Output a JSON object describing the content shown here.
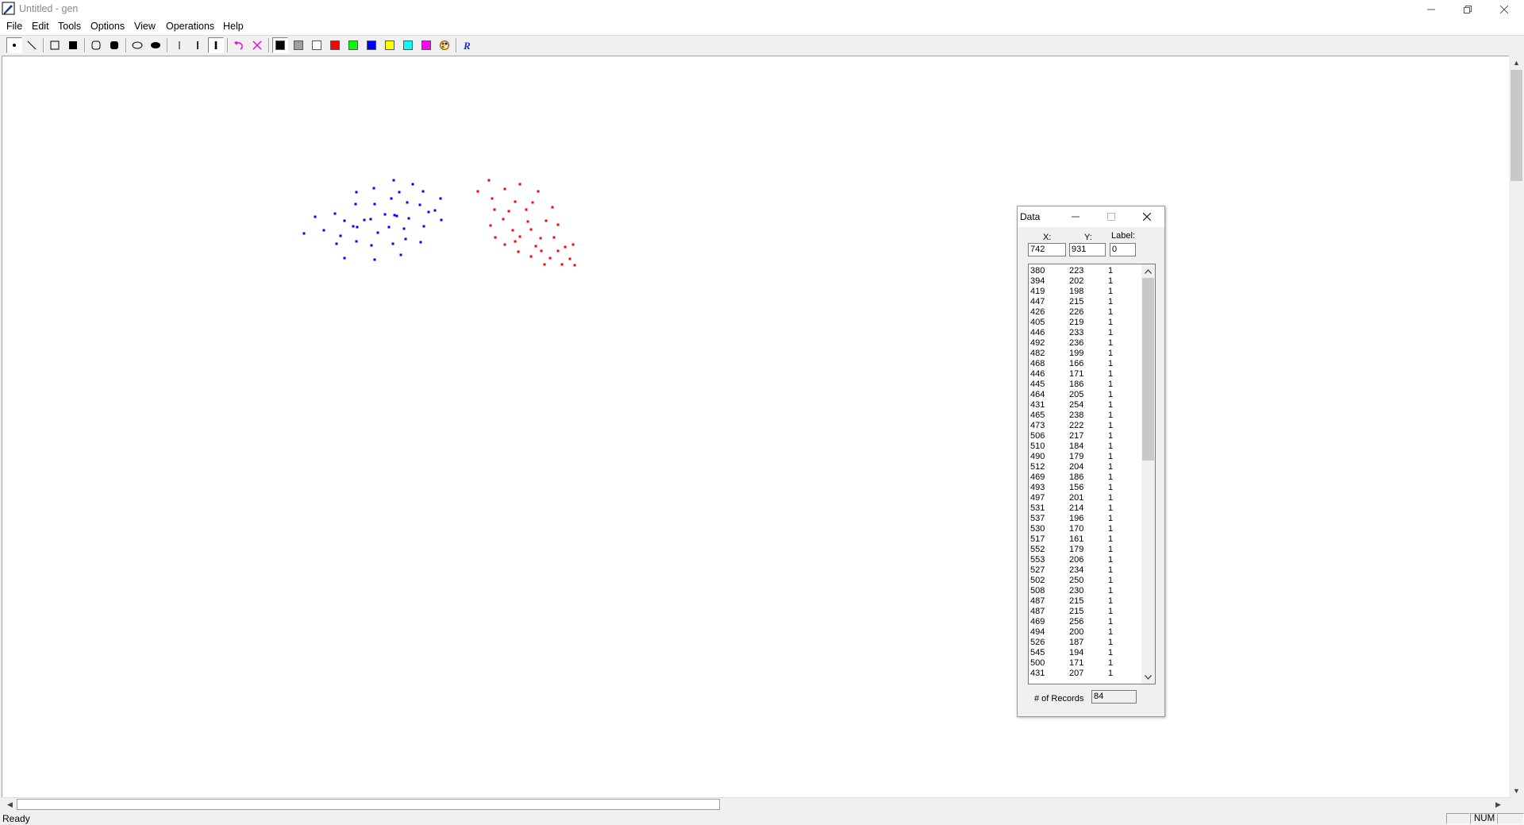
{
  "window": {
    "title": "Untitled - gen",
    "minimize_icon": "minimize-icon",
    "restore_icon": "restore-icon",
    "close_icon": "close-icon"
  },
  "menu": [
    "File",
    "Edit",
    "Tools",
    "Options",
    "View",
    "Operations",
    "Help"
  ],
  "toolbar": {
    "tools": [
      "point-tool",
      "line-tool",
      "rectangle-tool",
      "filled-rectangle-tool",
      "rounded-rectangle-tool",
      "filled-rounded-rectangle-tool",
      "ellipse-tool",
      "filled-ellipse-tool",
      "thin-line-width",
      "medium-line-width",
      "thick-line-width",
      "undo-tool",
      "clear-tool"
    ],
    "colors": [
      "#000000",
      "#a0a0a0",
      "#ffffff",
      "#ff0000",
      "#00ff00",
      "#0000ff",
      "#ffff00",
      "#00ffff",
      "#ff00ff"
    ],
    "custom_color_icon": "palette-icon",
    "run_icon": "run-icon"
  },
  "canvas": {
    "colors": {
      "class1": "#0000ff",
      "class2": "#ff0000"
    }
  },
  "statusbar": {
    "text": "Ready",
    "num": "NUM"
  },
  "data_dialog": {
    "title": "Data",
    "x_label": "X:",
    "y_label": "Y:",
    "label_label": "Label:",
    "x_value": "742",
    "y_value": "931",
    "label_value": "0",
    "records_label": "# of Records",
    "records_value": "84",
    "rows": [
      [
        "380",
        "223",
        "1"
      ],
      [
        "394",
        "202",
        "1"
      ],
      [
        "419",
        "198",
        "1"
      ],
      [
        "447",
        "215",
        "1"
      ],
      [
        "426",
        "226",
        "1"
      ],
      [
        "405",
        "219",
        "1"
      ],
      [
        "446",
        "233",
        "1"
      ],
      [
        "492",
        "236",
        "1"
      ],
      [
        "482",
        "199",
        "1"
      ],
      [
        "468",
        "166",
        "1"
      ],
      [
        "446",
        "171",
        "1"
      ],
      [
        "445",
        "186",
        "1"
      ],
      [
        "464",
        "205",
        "1"
      ],
      [
        "431",
        "254",
        "1"
      ],
      [
        "465",
        "238",
        "1"
      ],
      [
        "473",
        "222",
        "1"
      ],
      [
        "506",
        "217",
        "1"
      ],
      [
        "510",
        "184",
        "1"
      ],
      [
        "490",
        "179",
        "1"
      ],
      [
        "512",
        "204",
        "1"
      ],
      [
        "469",
        "186",
        "1"
      ],
      [
        "493",
        "156",
        "1"
      ],
      [
        "497",
        "201",
        "1"
      ],
      [
        "531",
        "214",
        "1"
      ],
      [
        "537",
        "196",
        "1"
      ],
      [
        "530",
        "170",
        "1"
      ],
      [
        "517",
        "161",
        "1"
      ],
      [
        "552",
        "179",
        "1"
      ],
      [
        "553",
        "206",
        "1"
      ],
      [
        "527",
        "234",
        "1"
      ],
      [
        "502",
        "250",
        "1"
      ],
      [
        "508",
        "230",
        "1"
      ],
      [
        "487",
        "215",
        "1"
      ],
      [
        "487",
        "215",
        "1"
      ],
      [
        "469",
        "256",
        "1"
      ],
      [
        "494",
        "200",
        "1"
      ],
      [
        "526",
        "187",
        "1"
      ],
      [
        "545",
        "194",
        "1"
      ],
      [
        "500",
        "171",
        "1"
      ],
      [
        "431",
        "207",
        "1"
      ]
    ]
  }
}
